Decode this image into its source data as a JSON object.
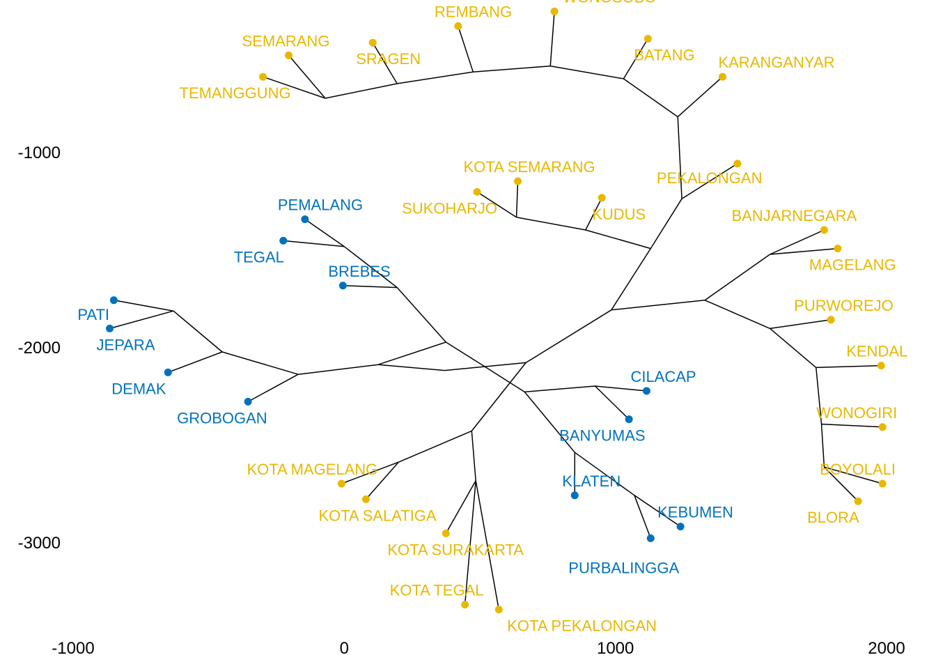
{
  "chart_data": {
    "type": "tree",
    "xlim": [
      -1050,
      2080
    ],
    "ylim": [
      -3500,
      -200
    ],
    "x_ticks": [
      {
        "value": -1000,
        "label": "-1000"
      },
      {
        "value": 0,
        "label": "0"
      },
      {
        "value": 1000,
        "label": "1000"
      },
      {
        "value": 2000,
        "label": "2000"
      }
    ],
    "y_ticks": [
      {
        "value": -1000,
        "label": "-1000"
      },
      {
        "value": -2000,
        "label": "-2000"
      },
      {
        "value": -3000,
        "label": "-3000"
      }
    ],
    "colors": {
      "group_1": "#0072BD",
      "group_2": "#E8B800"
    },
    "leaves": [
      {
        "name": "TEMANGGUNG",
        "x": -300,
        "y": -615,
        "group": "group_2"
      },
      {
        "name": "SEMARANG",
        "x": -205,
        "y": -505,
        "group": "group_2"
      },
      {
        "name": "SRAGEN",
        "x": 105,
        "y": -440,
        "group": "group_2"
      },
      {
        "name": "REMBANG",
        "x": 420,
        "y": -355,
        "group": "group_2"
      },
      {
        "name": "WONOSOBO",
        "x": 775,
        "y": -280,
        "group": "group_2"
      },
      {
        "name": "BATANG",
        "x": 1120,
        "y": -420,
        "group": "group_2"
      },
      {
        "name": "KARANGANYAR",
        "x": 1395,
        "y": -615,
        "group": "group_2"
      },
      {
        "name": "PEKALONGAN",
        "x": 1450,
        "y": -1060,
        "group": "group_2"
      },
      {
        "name": "KOTA SEMARANG",
        "x": 640,
        "y": -1150,
        "group": "group_2"
      },
      {
        "name": "SUKOHARJO",
        "x": 490,
        "y": -1205,
        "group": "group_2"
      },
      {
        "name": "KUDUS",
        "x": 950,
        "y": -1235,
        "group": "group_2"
      },
      {
        "name": "BANJARNEGARA",
        "x": 1770,
        "y": -1400,
        "group": "group_2"
      },
      {
        "name": "MAGELANG",
        "x": 1820,
        "y": -1495,
        "group": "group_2"
      },
      {
        "name": "PURWOREJO",
        "x": 1795,
        "y": -1860,
        "group": "group_2"
      },
      {
        "name": "KENDAL",
        "x": 1980,
        "y": -2095,
        "group": "group_2"
      },
      {
        "name": "WONOGIRI",
        "x": 1985,
        "y": -2410,
        "group": "group_2"
      },
      {
        "name": "BOYOLALI",
        "x": 1985,
        "y": -2700,
        "group": "group_2"
      },
      {
        "name": "BLORA",
        "x": 1895,
        "y": -2790,
        "group": "group_2"
      },
      {
        "name": "PEMALANG",
        "x": -145,
        "y": -1345,
        "group": "group_1"
      },
      {
        "name": "TEGAL",
        "x": -225,
        "y": -1455,
        "group": "group_1"
      },
      {
        "name": "BREBES",
        "x": -5,
        "y": -1685,
        "group": "group_1"
      },
      {
        "name": "PATI",
        "x": -850,
        "y": -1760,
        "group": "group_1"
      },
      {
        "name": "JEPARA",
        "x": -865,
        "y": -1905,
        "group": "group_1"
      },
      {
        "name": "DEMAK",
        "x": -650,
        "y": -2130,
        "group": "group_1"
      },
      {
        "name": "GROBOGAN",
        "x": -355,
        "y": -2280,
        "group": "group_1"
      },
      {
        "name": "CILACAP",
        "x": 1115,
        "y": -2225,
        "group": "group_1"
      },
      {
        "name": "BANYUMAS",
        "x": 1050,
        "y": -2370,
        "group": "group_1"
      },
      {
        "name": "KLATEN",
        "x": 850,
        "y": -2760,
        "group": "group_1"
      },
      {
        "name": "KEBUMEN",
        "x": 1240,
        "y": -2920,
        "group": "group_1"
      },
      {
        "name": "PURBALINGGA",
        "x": 1130,
        "y": -2980,
        "group": "group_1"
      },
      {
        "name": "KOTA MAGELANG",
        "x": -10,
        "y": -2700,
        "group": "group_2"
      },
      {
        "name": "KOTA SALATIGA",
        "x": 80,
        "y": -2780,
        "group": "group_2"
      },
      {
        "name": "KOTA SURAKARTA",
        "x": 375,
        "y": -2955,
        "group": "group_2"
      },
      {
        "name": "KOTA TEGAL",
        "x": 445,
        "y": -3320,
        "group": "group_2"
      },
      {
        "name": "KOTA PEKALONGAN",
        "x": 570,
        "y": -3345,
        "group": "group_2"
      }
    ],
    "internal_nodes": [
      {
        "id": "n_tem_sem",
        "x": -70,
        "y": -725
      },
      {
        "id": "n_sragen",
        "x": 195,
        "y": -650
      },
      {
        "id": "n_rembang",
        "x": 475,
        "y": -590
      },
      {
        "id": "n_wonosobo",
        "x": 760,
        "y": -560
      },
      {
        "id": "n_batang",
        "x": 1030,
        "y": -625
      },
      {
        "id": "n_karang",
        "x": 1230,
        "y": -820
      },
      {
        "id": "n_pekal",
        "x": 1245,
        "y": -1240
      },
      {
        "id": "n_sem_suk",
        "x": 635,
        "y": -1335
      },
      {
        "id": "n_kudus",
        "x": 890,
        "y": -1400
      },
      {
        "id": "n_top",
        "x": 1130,
        "y": -1495
      },
      {
        "id": "n_center",
        "x": 985,
        "y": -1810
      },
      {
        "id": "n_right",
        "x": 1330,
        "y": -1760
      },
      {
        "id": "n_banj_mag",
        "x": 1570,
        "y": -1525
      },
      {
        "id": "n_purw",
        "x": 1570,
        "y": -1905
      },
      {
        "id": "n_kendal",
        "x": 1740,
        "y": -2105
      },
      {
        "id": "n_wono",
        "x": 1760,
        "y": -2395
      },
      {
        "id": "n_boyo",
        "x": 1770,
        "y": -2615
      },
      {
        "id": "n_mid",
        "x": 670,
        "y": -2080
      },
      {
        "id": "n_mid2",
        "x": 370,
        "y": -2120
      },
      {
        "id": "n_mid3",
        "x": 125,
        "y": -2090
      },
      {
        "id": "n_left",
        "x": -170,
        "y": -2140
      },
      {
        "id": "n_left2",
        "x": -450,
        "y": -2025
      },
      {
        "id": "n_pati_jep",
        "x": -630,
        "y": -1815
      },
      {
        "id": "n_low",
        "x": 470,
        "y": -2430
      },
      {
        "id": "n_kmag",
        "x": 200,
        "y": -2590
      },
      {
        "id": "n_low2",
        "x": 485,
        "y": -2685
      },
      {
        "id": "n_low3",
        "x": 455,
        "y": -2395
      },
      {
        "id": "n_pem_teg",
        "x": 0,
        "y": -1485
      },
      {
        "id": "n_brebes",
        "x": 195,
        "y": -1695
      },
      {
        "id": "n_bb",
        "x": 375,
        "y": -1975
      },
      {
        "id": "n_cross",
        "x": 495,
        "y": -2080
      },
      {
        "id": "n_sw",
        "x": 665,
        "y": -2230
      },
      {
        "id": "n_cil",
        "x": 925,
        "y": -2200
      },
      {
        "id": "n_kl",
        "x": 850,
        "y": -2540
      },
      {
        "id": "n_pb",
        "x": 1070,
        "y": -2760
      }
    ],
    "edges": [
      [
        "TEMANGGUNG",
        "n_tem_sem"
      ],
      [
        "SEMARANG",
        "n_tem_sem"
      ],
      [
        "n_tem_sem",
        "n_sragen"
      ],
      [
        "SRAGEN",
        "n_sragen"
      ],
      [
        "n_sragen",
        "n_rembang"
      ],
      [
        "REMBANG",
        "n_rembang"
      ],
      [
        "n_rembang",
        "n_wonosobo"
      ],
      [
        "WONOSOBO",
        "n_wonosobo"
      ],
      [
        "n_wonosobo",
        "n_batang"
      ],
      [
        "BATANG",
        "n_batang"
      ],
      [
        "n_batang",
        "n_karang"
      ],
      [
        "KARANGANYAR",
        "n_karang"
      ],
      [
        "n_karang",
        "n_pekal"
      ],
      [
        "PEKALONGAN",
        "n_pekal"
      ],
      [
        "n_pekal",
        "n_top"
      ],
      [
        "SUKOHARJO",
        "n_sem_suk"
      ],
      [
        "KOTA SEMARANG",
        "n_sem_suk"
      ],
      [
        "n_sem_suk",
        "n_kudus"
      ],
      [
        "KUDUS",
        "n_kudus"
      ],
      [
        "n_kudus",
        "n_top"
      ],
      [
        "n_top",
        "n_center"
      ],
      [
        "n_center",
        "n_right"
      ],
      [
        "n_right",
        "n_banj_mag"
      ],
      [
        "BANJARNEGARA",
        "n_banj_mag"
      ],
      [
        "MAGELANG",
        "n_banj_mag"
      ],
      [
        "n_right",
        "n_purw"
      ],
      [
        "PURWOREJO",
        "n_purw"
      ],
      [
        "n_purw",
        "n_kendal"
      ],
      [
        "KENDAL",
        "n_kendal"
      ],
      [
        "n_kendal",
        "n_wono"
      ],
      [
        "WONOGIRI",
        "n_wono"
      ],
      [
        "n_wono",
        "n_boyo"
      ],
      [
        "BOYOLALI",
        "n_boyo"
      ],
      [
        "BLORA",
        "n_boyo"
      ],
      [
        "n_center",
        "n_mid"
      ],
      [
        "n_mid",
        "n_mid2"
      ],
      [
        "n_mid2",
        "n_mid3"
      ],
      [
        "n_mid3",
        "n_left"
      ],
      [
        "n_left",
        "n_left2"
      ],
      [
        "GROBOGAN",
        "n_left"
      ],
      [
        "n_left2",
        "n_pati_jep"
      ],
      [
        "DEMAK",
        "n_left2"
      ],
      [
        "PATI",
        "n_pati_jep"
      ],
      [
        "JEPARA",
        "n_pati_jep"
      ],
      [
        "n_mid",
        "n_low"
      ],
      [
        "n_low",
        "n_kmag"
      ],
      [
        "KOTA MAGELANG",
        "n_kmag"
      ],
      [
        "KOTA SALATIGA",
        "n_kmag"
      ],
      [
        "n_low",
        "n_low2"
      ],
      [
        "KOTA SURAKARTA",
        "n_low2"
      ],
      [
        "n_low2",
        "KOTA TEGAL"
      ],
      [
        "n_low2",
        "KOTA PEKALONGAN"
      ],
      [
        "n_mid3",
        "n_bb"
      ],
      [
        "n_bb",
        "n_cross"
      ],
      [
        "PEMALANG",
        "n_pem_teg"
      ],
      [
        "TEGAL",
        "n_pem_teg"
      ],
      [
        "n_pem_teg",
        "n_brebes"
      ],
      [
        "BREBES",
        "n_brebes"
      ],
      [
        "n_brebes",
        "n_bb"
      ],
      [
        "n_cross",
        "n_sw"
      ],
      [
        "n_sw",
        "n_cil"
      ],
      [
        "CILACAP",
        "n_cil"
      ],
      [
        "BANYUMAS",
        "n_cil"
      ],
      [
        "n_sw",
        "n_kl"
      ],
      [
        "KLATEN",
        "n_kl"
      ],
      [
        "n_kl",
        "n_pb"
      ],
      [
        "KEBUMEN",
        "n_pb"
      ],
      [
        "PURBALINGGA",
        "n_pb"
      ]
    ],
    "title": "",
    "xlabel": "",
    "ylabel": "",
    "grid": false,
    "legend": "none"
  }
}
